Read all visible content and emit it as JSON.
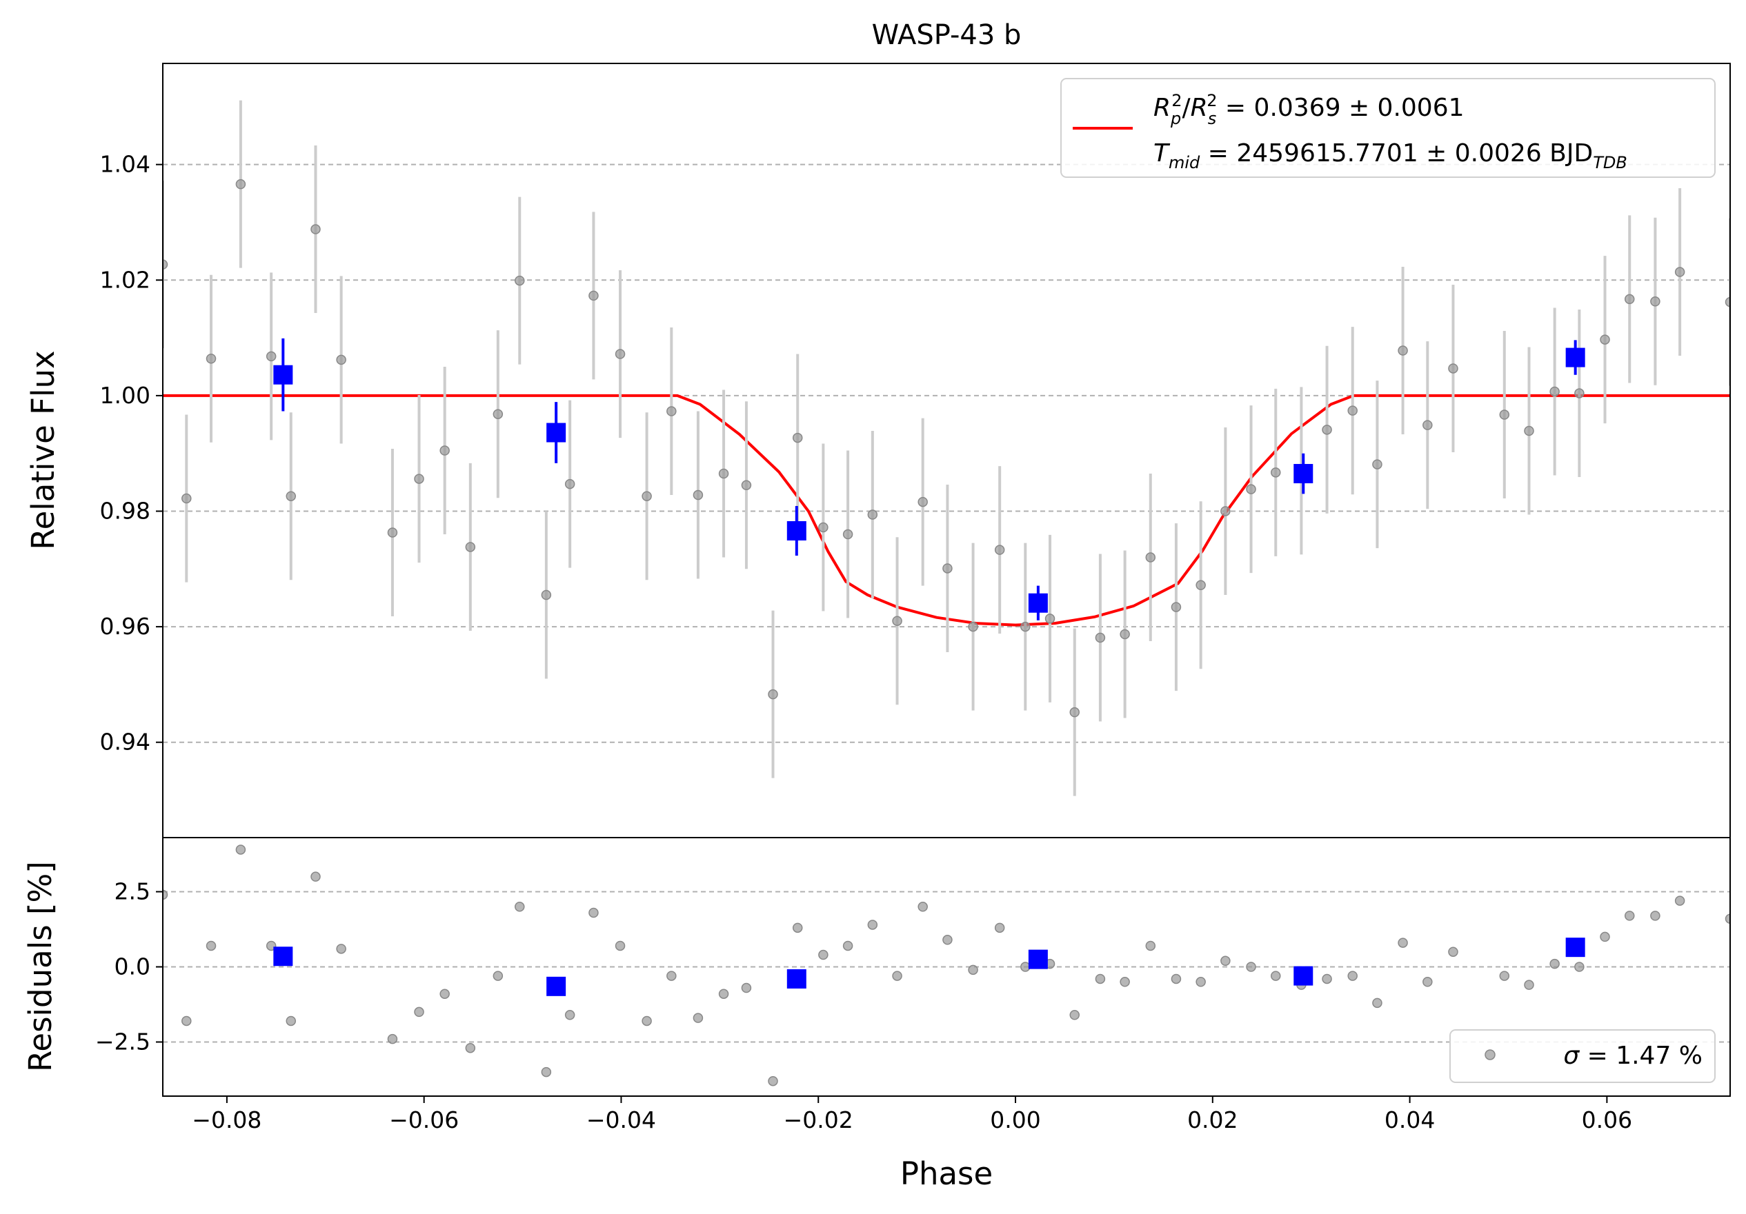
{
  "chart_data": [
    {
      "panel": "transit",
      "type": "scatter",
      "title": "WASP-43 b",
      "xlabel": "",
      "ylabel": "Relative Flux",
      "xlim": [
        -0.0865,
        0.0725
      ],
      "ylim": [
        0.9235,
        1.0575
      ],
      "yticks": [
        0.94,
        0.96,
        0.98,
        1.0,
        1.02,
        1.04
      ],
      "ytick_labels": [
        "0.94",
        "0.96",
        "0.98",
        "1.00",
        "1.02",
        "1.04"
      ],
      "grid": "horizontal dashed",
      "legend": {
        "placement": "top-right",
        "line1": {
          "symbol": "R",
          "sub": "p",
          "sup": "2",
          "sep": "/",
          "symbol2": "R",
          "sub2": "s",
          "sup2": "2",
          "rest": " = 0.0369 ± 0.0061"
        },
        "line2": {
          "symbol": "T",
          "sub": "mid",
          "rest": " = 2459615.7701 ± 0.0026 BJD",
          "rest_sub": "TDB"
        }
      },
      "colors": {
        "data": "#999999",
        "errorbar": "#cccccc",
        "binned": "#0000ff",
        "model": "#ff0000"
      },
      "model_curve": [
        [
          -0.0865,
          1.0
        ],
        [
          -0.0343,
          1.0
        ],
        [
          -0.032,
          0.9985
        ],
        [
          -0.028,
          0.9933
        ],
        [
          -0.024,
          0.9868
        ],
        [
          -0.021,
          0.98
        ],
        [
          -0.019,
          0.973
        ],
        [
          -0.0172,
          0.9678
        ],
        [
          -0.015,
          0.9655
        ],
        [
          -0.012,
          0.9634
        ],
        [
          -0.008,
          0.9616
        ],
        [
          -0.004,
          0.9606
        ],
        [
          0.0,
          0.9603
        ],
        [
          0.004,
          0.9606
        ],
        [
          0.008,
          0.9617
        ],
        [
          0.012,
          0.9636
        ],
        [
          0.0165,
          0.9675
        ],
        [
          0.019,
          0.9732
        ],
        [
          0.021,
          0.979
        ],
        [
          0.024,
          0.986
        ],
        [
          0.028,
          0.9934
        ],
        [
          0.032,
          0.9985
        ],
        [
          0.0343,
          1.0
        ],
        [
          0.0725,
          1.0
        ]
      ],
      "series": [
        {
          "name": "",
          "marker": "circle",
          "x": [
            -0.0865,
            -0.0841,
            -0.0816,
            -0.0786,
            -0.0755,
            -0.0735,
            -0.071,
            -0.0684,
            -0.0632,
            -0.0605,
            -0.0579,
            -0.0553,
            -0.0525,
            -0.0503,
            -0.0476,
            -0.0452,
            -0.0428,
            -0.0401,
            -0.0374,
            -0.0349,
            -0.0322,
            -0.0296,
            -0.0273,
            -0.0246,
            -0.0221,
            -0.0195,
            -0.017,
            -0.0145,
            -0.012,
            -0.0094,
            -0.0069,
            -0.0043,
            -0.0016,
            0.001,
            0.0035,
            0.006,
            0.0086,
            0.0111,
            0.0137,
            0.0163,
            0.0188,
            0.0213,
            0.0239,
            0.0264,
            0.029,
            0.0316,
            0.0342,
            0.0367,
            0.0393,
            0.0418,
            0.0444,
            0.0496,
            0.0521,
            0.0547,
            0.0572,
            0.0598,
            0.0623,
            0.0649,
            0.0674,
            0.0725
          ],
          "y": [
            1.0227,
            0.9822,
            1.0064,
            1.0366,
            1.0068,
            0.9826,
            1.0288,
            1.0062,
            0.9763,
            0.9856,
            0.9905,
            0.9738,
            0.9968,
            1.0199,
            0.9655,
            0.9847,
            1.0173,
            1.0072,
            0.9826,
            0.9973,
            0.9828,
            0.9865,
            0.9845,
            0.9483,
            0.9927,
            0.9772,
            0.976,
            0.9794,
            0.961,
            0.9816,
            0.9701,
            0.96,
            0.9733,
            0.96,
            0.9614,
            0.9452,
            0.9581,
            0.9587,
            0.972,
            0.9634,
            0.9672,
            0.98,
            0.9838,
            0.9867,
            0.987,
            0.9941,
            0.9974,
            0.9881,
            1.0078,
            0.9949,
            1.0047,
            0.9967,
            0.9939,
            1.0007,
            1.0004,
            1.0097,
            1.0167,
            1.0163,
            1.0214,
            1.0162
          ],
          "yerr": 0.0145
        },
        {
          "name": "",
          "marker": "square",
          "x": [
            -0.0743,
            -0.0466,
            -0.0222,
            0.0023,
            0.0292,
            0.0568
          ],
          "y": [
            1.0036,
            0.9936,
            0.9766,
            0.9641,
            0.9865,
            1.0066
          ],
          "yerr": [
            0.0063,
            0.0053,
            0.0043,
            0.003,
            0.0035,
            0.003
          ]
        }
      ]
    },
    {
      "panel": "residuals",
      "type": "scatter",
      "xlabel": "Phase",
      "ylabel": "Residuals [%]",
      "xlim": [
        -0.0865,
        0.0725
      ],
      "ylim": [
        -4.3,
        4.3
      ],
      "xticks": [
        -0.08,
        -0.06,
        -0.04,
        -0.02,
        0.0,
        0.02,
        0.04,
        0.06
      ],
      "xtick_labels": [
        "−0.08",
        "−0.06",
        "−0.04",
        "−0.02",
        "0.00",
        "0.02",
        "0.04",
        "0.06"
      ],
      "yticks": [
        -2.5,
        0.0,
        2.5
      ],
      "ytick_labels": [
        "−2.5",
        "0.0",
        "2.5"
      ],
      "grid": "horizontal dashed",
      "legend": {
        "placement": "bottom-right",
        "label_symbol": "σ",
        "label_rest": " = 1.47 %"
      },
      "series": [
        {
          "name": "",
          "marker": "circle",
          "x": [
            -0.0865,
            -0.0841,
            -0.0816,
            -0.0786,
            -0.0755,
            -0.0735,
            -0.071,
            -0.0684,
            -0.0632,
            -0.0605,
            -0.0579,
            -0.0553,
            -0.0525,
            -0.0503,
            -0.0476,
            -0.0452,
            -0.0428,
            -0.0401,
            -0.0374,
            -0.0349,
            -0.0322,
            -0.0296,
            -0.0273,
            -0.0246,
            -0.0221,
            -0.0195,
            -0.017,
            -0.0145,
            -0.012,
            -0.0094,
            -0.0069,
            -0.0043,
            -0.0016,
            0.001,
            0.0035,
            0.006,
            0.0086,
            0.0111,
            0.0137,
            0.0163,
            0.0188,
            0.0213,
            0.0239,
            0.0264,
            0.029,
            0.0316,
            0.0342,
            0.0367,
            0.0393,
            0.0418,
            0.0444,
            0.0496,
            0.0521,
            0.0547,
            0.0572,
            0.0598,
            0.0623,
            0.0649,
            0.0674,
            0.0725
          ],
          "y": [
            2.4,
            -1.8,
            0.7,
            3.9,
            0.7,
            -1.8,
            3.0,
            0.6,
            -2.4,
            -1.5,
            -0.9,
            -2.7,
            -0.3,
            2.0,
            -3.5,
            -1.6,
            1.8,
            0.7,
            -1.8,
            -0.3,
            -1.7,
            -0.9,
            -0.7,
            -3.8,
            1.3,
            0.4,
            0.7,
            1.4,
            -0.3,
            2.0,
            0.9,
            -0.1,
            1.3,
            0.0,
            0.1,
            -1.6,
            -0.4,
            -0.5,
            0.7,
            -0.4,
            -0.5,
            0.2,
            0.0,
            -0.3,
            -0.6,
            -0.4,
            -0.3,
            -1.2,
            0.8,
            -0.5,
            0.5,
            -0.3,
            -0.6,
            0.1,
            0.0,
            1.0,
            1.7,
            1.7,
            2.2,
            1.6
          ]
        },
        {
          "name": "",
          "marker": "square",
          "x": [
            -0.0743,
            -0.0466,
            -0.0222,
            0.0023,
            0.0292,
            0.0568
          ],
          "y": [
            0.35,
            -0.65,
            -0.4,
            0.25,
            -0.3,
            0.65
          ]
        }
      ]
    }
  ]
}
